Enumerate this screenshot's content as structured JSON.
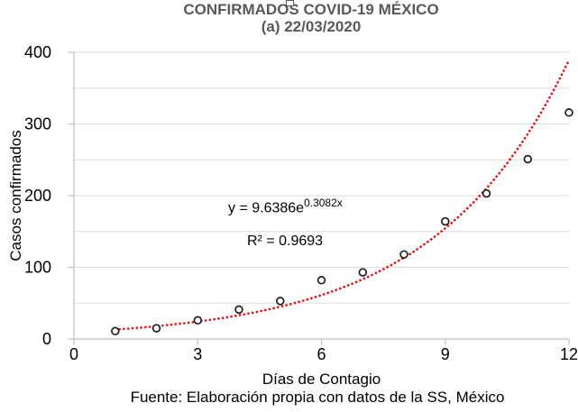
{
  "title": {
    "line1": "CONFIRMADOS COVID-19 MÉXICO",
    "line2": "(a) 22/03/2020",
    "color": "#595959"
  },
  "y_axis_title": "Casos confirmados",
  "x_axis_title": "Días de Contagio",
  "source_note": "Fuente: Elaboración propia con datos de la SS, México",
  "annotations": {
    "equation_base": "y = 9.6386e",
    "equation_exponent": "0.3082x",
    "r_squared": "R² = 0.9693"
  },
  "chart_data": {
    "type": "scatter",
    "title": "CONFIRMADOS COVID-19 MÉXICO (a) 22/03/2020",
    "xlabel": "Días de Contagio",
    "ylabel": "Casos confirmados",
    "series_name": "Casos confirmados",
    "x": [
      1,
      2,
      3,
      4,
      5,
      6,
      7,
      8,
      9,
      10,
      11,
      12
    ],
    "y": [
      11,
      15,
      26,
      41,
      53,
      82,
      93,
      118,
      164,
      203,
      251,
      316
    ],
    "xlim": [
      0,
      12
    ],
    "ylim": [
      0,
      400
    ],
    "x_ticks": [
      0,
      3,
      6,
      9,
      12
    ],
    "y_ticks": [
      0,
      100,
      200,
      300,
      400
    ],
    "y_grid_step": 50,
    "grid": "horizontal-only",
    "legend": "none",
    "marker": "open-circle",
    "trendline": {
      "type": "exponential",
      "equation": "y = 9.6386e^(0.3082x)",
      "a": 9.6386,
      "b": 0.3082,
      "r2": 0.9693,
      "x_start": 1,
      "x_end": 12,
      "style": "dotted",
      "color": "#FF0000"
    },
    "colors": {
      "marker_stroke": "#1f1f1f",
      "marker_fill": "#ffffff",
      "axis": "#BFBFBF",
      "gridline": "#DCDCDC",
      "tick_label": "#000000",
      "trendline": "#FF0000"
    }
  }
}
